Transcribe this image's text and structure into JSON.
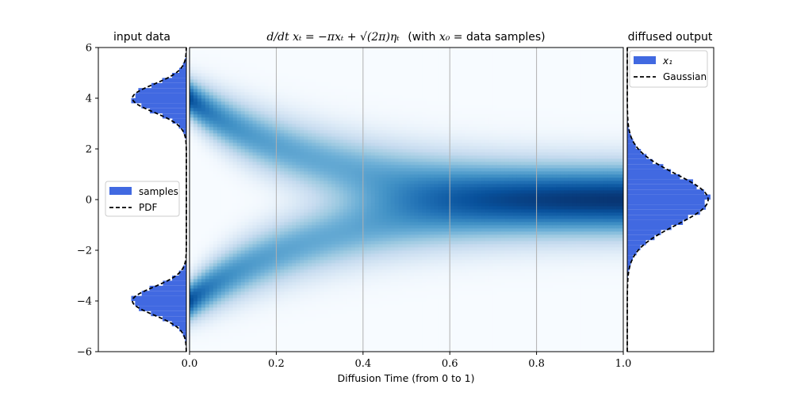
{
  "chart_data": [
    {
      "panel": "left",
      "type": "histogram",
      "orientation": "horizontal",
      "title": "input data",
      "ylim": [
        -6,
        6
      ],
      "yticks": [
        -6,
        -4,
        -2,
        0,
        2,
        4,
        6
      ],
      "ytick_labels": [
        "−6",
        "−4",
        "−2",
        "0",
        "2",
        "4",
        "6"
      ],
      "legend": {
        "placement": "center-left",
        "entries": [
          "samples",
          "PDF"
        ]
      },
      "series": [
        {
          "name": "samples",
          "kind": "histogram",
          "color": "#4169e1",
          "distribution": {
            "mixture_means": [
              -4,
              4
            ],
            "std": 0.55,
            "weights": [
              0.5,
              0.5
            ]
          }
        },
        {
          "name": "PDF",
          "kind": "dashed-line",
          "color": "#000000",
          "distribution": {
            "mixture_means": [
              -4,
              4
            ],
            "std": 0.55,
            "weights": [
              0.5,
              0.5
            ]
          }
        }
      ]
    },
    {
      "panel": "center",
      "type": "heatmap",
      "title_math": "d/dt xₜ = −πxₜ + √(2π)ηₜ",
      "title_suffix": "(with ",
      "title_suffix_math": "x₀",
      "title_suffix_end": " = data samples)",
      "xlabel": "Diffusion Time (from 0 to 1)",
      "xlim": [
        0,
        1
      ],
      "ylim": [
        -6,
        6
      ],
      "xticks": [
        0,
        0.2,
        0.4,
        0.6,
        0.8,
        1
      ],
      "xtick_labels": [
        "0.0",
        "0.2",
        "0.4",
        "0.6",
        "0.8",
        "1.0"
      ],
      "grid_x": true,
      "colormap": "Blues",
      "process": {
        "theta": 3.14159,
        "sigma": 2.5066,
        "initial_means": [
          -4,
          4
        ],
        "initial_std": 0.55
      }
    },
    {
      "panel": "right",
      "type": "histogram",
      "orientation": "horizontal",
      "title": "diffused output",
      "ylim": [
        -6,
        6
      ],
      "legend": {
        "placement": "top-left",
        "entries": [
          "x₁",
          "Gaussian"
        ]
      },
      "series": [
        {
          "name": "x₁",
          "kind": "histogram",
          "color": "#4169e1",
          "distribution": {
            "mean": 0,
            "std": 1.0
          }
        },
        {
          "name": "Gaussian",
          "kind": "dashed-line",
          "color": "#000000",
          "distribution": {
            "mean": 0,
            "std": 1.0
          }
        }
      ]
    }
  ],
  "colors": {
    "histogram": "#4169e1",
    "pdf_line": "#000000",
    "grid": "#b0b0b0",
    "heatmap_low": "#f7fbff",
    "heatmap_high": "#08306b"
  }
}
